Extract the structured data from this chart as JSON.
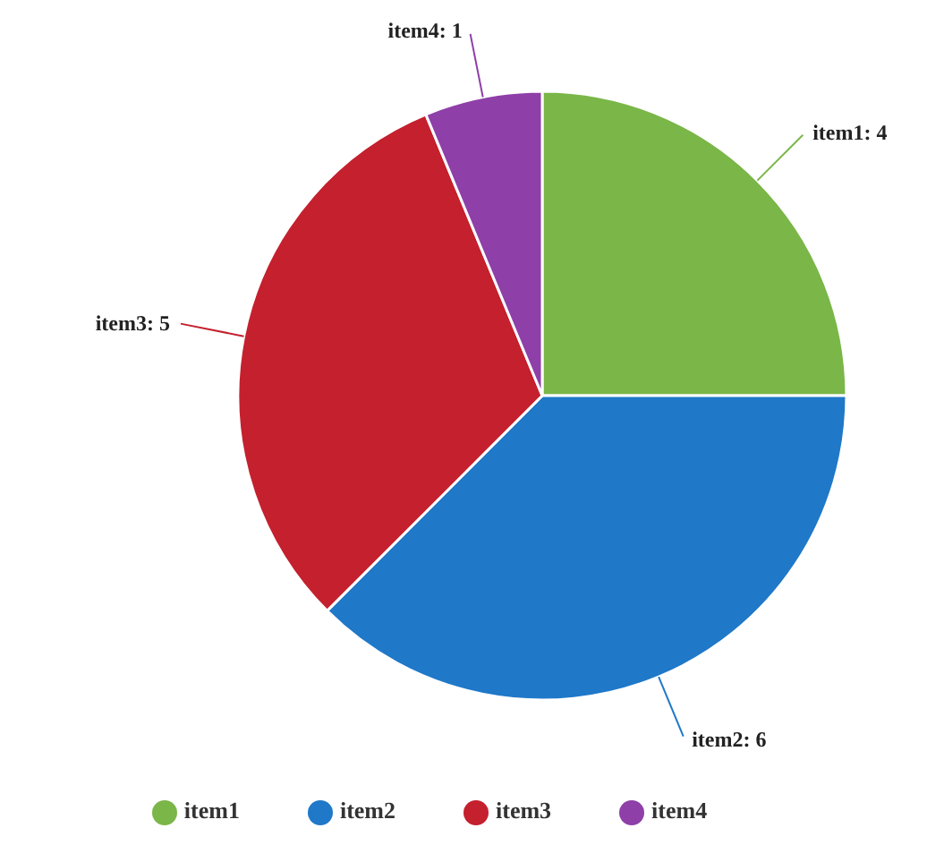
{
  "chart_data": {
    "type": "pie",
    "categories": [
      "item1",
      "item2",
      "item3",
      "item4"
    ],
    "values": [
      4,
      6,
      5,
      1
    ],
    "colors": [
      "#7ab648",
      "#1f78c8",
      "#c4202e",
      "#8e3fa8"
    ],
    "value_labels": [
      "item1: 4",
      "item2: 6",
      "item3: 5",
      "item4: 1"
    ],
    "legend": "bottom"
  }
}
